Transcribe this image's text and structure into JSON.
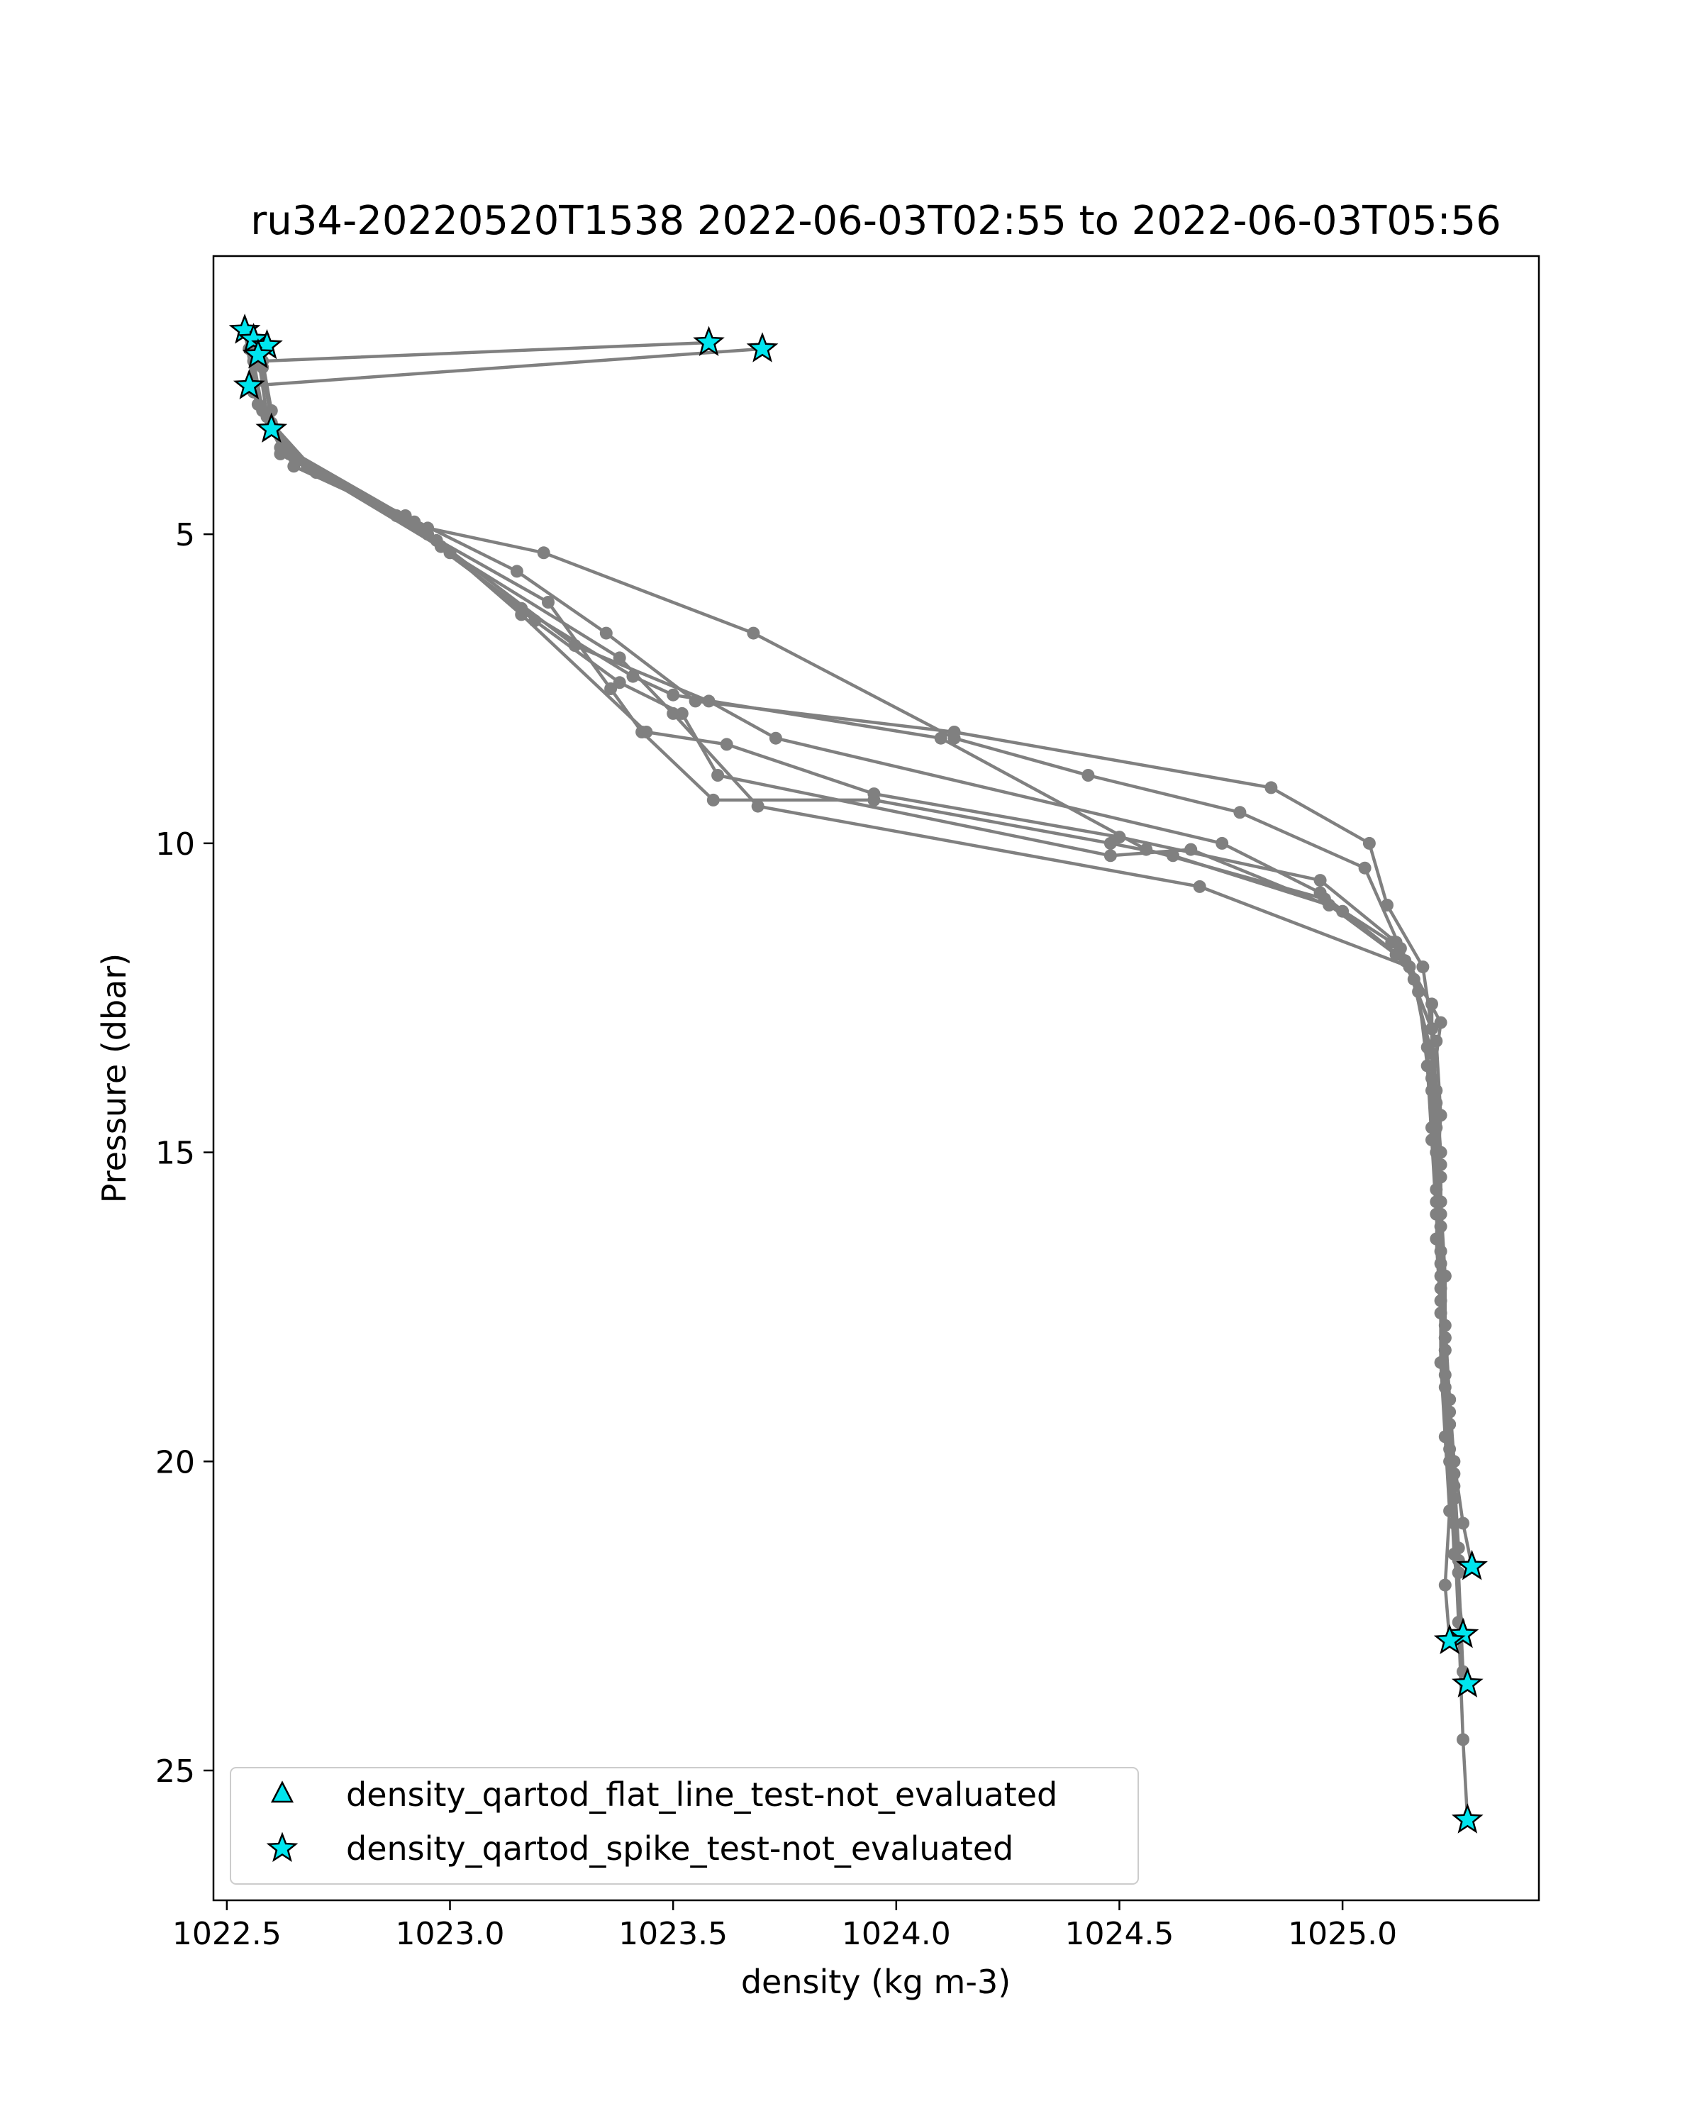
{
  "chart_data": {
    "type": "line",
    "title": "ru34-20220520T1538 2022-06-03T02:55 to 2022-06-03T05:56",
    "xlabel": "density (kg m-3)",
    "ylabel": "Pressure (dbar)",
    "xlim": [
      1022.47,
      1025.44
    ],
    "ylim": [
      27.1,
      0.5
    ],
    "y_inverted": true,
    "grid": false,
    "xticks": [
      1022.5,
      1023.0,
      1023.5,
      1024.0,
      1024.5,
      1025.0
    ],
    "xtick_labels": [
      "1022.5",
      "1023.0",
      "1023.5",
      "1024.0",
      "1024.5",
      "1025.0"
    ],
    "yticks": [
      5,
      10,
      15,
      20,
      25
    ],
    "ytick_labels": [
      "5",
      "10",
      "15",
      "20",
      "25"
    ],
    "line_color": "#808080",
    "marker_fill": "#00e5ee",
    "series": [
      {
        "points": [
          [
            1023.58,
            1.9
          ],
          [
            1022.58,
            2.2
          ],
          [
            1022.6,
            3.0
          ],
          [
            1022.62,
            3.7
          ],
          [
            1022.9,
            4.7
          ],
          [
            1023.15,
            5.6
          ],
          [
            1023.35,
            6.6
          ],
          [
            1023.55,
            7.7
          ],
          [
            1024.13,
            8.2
          ],
          [
            1024.84,
            9.1
          ],
          [
            1025.06,
            10.0
          ],
          [
            1025.1,
            11.0
          ],
          [
            1025.18,
            12.0
          ],
          [
            1025.2,
            13.0
          ],
          [
            1025.21,
            14.0
          ],
          [
            1025.22,
            15.0
          ],
          [
            1025.22,
            16.0
          ],
          [
            1025.23,
            17.0
          ],
          [
            1025.23,
            18.0
          ],
          [
            1025.24,
            19.0
          ],
          [
            1025.25,
            20.0
          ],
          [
            1025.27,
            21.0
          ],
          [
            1025.29,
            21.7
          ]
        ]
      },
      {
        "points": [
          [
            1023.7,
            2.0
          ],
          [
            1022.55,
            2.6
          ],
          [
            1022.6,
            3.3
          ],
          [
            1022.65,
            3.9
          ],
          [
            1022.95,
            4.9
          ],
          [
            1023.21,
            5.3
          ],
          [
            1023.68,
            6.6
          ],
          [
            1024.13,
            8.3
          ],
          [
            1024.43,
            8.9
          ],
          [
            1024.77,
            9.5
          ],
          [
            1025.05,
            10.4
          ],
          [
            1025.13,
            11.7
          ],
          [
            1025.22,
            12.9
          ],
          [
            1025.2,
            14.0
          ],
          [
            1025.22,
            15.2
          ],
          [
            1025.21,
            16.4
          ],
          [
            1025.22,
            17.6
          ],
          [
            1025.23,
            18.8
          ],
          [
            1025.24,
            20.0
          ],
          [
            1025.25,
            21.5
          ],
          [
            1025.27,
            22.8
          ]
        ]
      },
      {
        "points": [
          [
            1022.54,
            1.7
          ],
          [
            1022.56,
            2.6
          ],
          [
            1022.63,
            3.6
          ],
          [
            1022.92,
            4.8
          ],
          [
            1023.16,
            6.3
          ],
          [
            1023.44,
            8.2
          ],
          [
            1023.62,
            8.4
          ],
          [
            1023.95,
            9.2
          ],
          [
            1024.5,
            9.9
          ],
          [
            1024.95,
            10.6
          ],
          [
            1025.12,
            11.6
          ],
          [
            1025.17,
            12.4
          ],
          [
            1025.19,
            13.6
          ],
          [
            1025.2,
            14.8
          ],
          [
            1025.21,
            16.0
          ],
          [
            1025.22,
            17.2
          ],
          [
            1025.22,
            18.4
          ],
          [
            1025.23,
            19.6
          ],
          [
            1025.24,
            20.8
          ],
          [
            1025.23,
            22.0
          ],
          [
            1025.24,
            22.9
          ]
        ]
      },
      {
        "points": [
          [
            1022.56,
            1.9
          ],
          [
            1022.56,
            2.7
          ],
          [
            1022.62,
            3.6
          ],
          [
            1022.88,
            4.7
          ],
          [
            1023.16,
            6.2
          ],
          [
            1023.41,
            7.3
          ],
          [
            1023.5,
            7.6
          ],
          [
            1024.1,
            8.3
          ],
          [
            1024.56,
            10.1
          ],
          [
            1024.96,
            10.9
          ],
          [
            1025.11,
            11.6
          ],
          [
            1025.16,
            12.2
          ],
          [
            1025.19,
            13.3
          ],
          [
            1025.2,
            14.6
          ],
          [
            1025.21,
            15.8
          ],
          [
            1025.22,
            17.0
          ],
          [
            1025.23,
            18.2
          ],
          [
            1025.24,
            19.4
          ],
          [
            1025.25,
            20.6
          ],
          [
            1025.26,
            21.8
          ],
          [
            1025.27,
            23.4
          ],
          [
            1025.28,
            23.6
          ]
        ]
      },
      {
        "points": [
          [
            1022.55,
            2.0
          ],
          [
            1022.57,
            2.9
          ],
          [
            1022.64,
            3.7
          ],
          [
            1022.95,
            5.0
          ],
          [
            1023.22,
            6.1
          ],
          [
            1023.36,
            7.5
          ],
          [
            1023.43,
            8.2
          ],
          [
            1023.59,
            9.3
          ],
          [
            1023.95,
            9.3
          ],
          [
            1024.48,
            10.0
          ],
          [
            1024.62,
            10.2
          ],
          [
            1024.97,
            11.0
          ],
          [
            1025.12,
            11.8
          ],
          [
            1025.2,
            12.6
          ],
          [
            1025.2,
            13.8
          ],
          [
            1025.21,
            15.0
          ],
          [
            1025.22,
            16.2
          ],
          [
            1025.22,
            17.4
          ],
          [
            1025.23,
            18.6
          ],
          [
            1025.24,
            19.8
          ],
          [
            1025.25,
            21.0
          ],
          [
            1025.26,
            22.6
          ],
          [
            1025.27,
            24.5
          ],
          [
            1025.28,
            25.8
          ]
        ]
      },
      {
        "points": [
          [
            1022.56,
            2.2
          ],
          [
            1022.58,
            3.0
          ],
          [
            1022.66,
            3.8
          ],
          [
            1022.98,
            5.2
          ],
          [
            1023.19,
            6.4
          ],
          [
            1023.38,
            7.4
          ],
          [
            1023.52,
            7.9
          ],
          [
            1023.6,
            8.9
          ],
          [
            1024.48,
            10.2
          ],
          [
            1024.66,
            10.1
          ],
          [
            1025.0,
            11.1
          ],
          [
            1025.14,
            11.9
          ],
          [
            1025.21,
            13.2
          ],
          [
            1025.22,
            14.4
          ],
          [
            1025.21,
            15.6
          ],
          [
            1025.22,
            16.8
          ],
          [
            1025.23,
            18.0
          ],
          [
            1025.24,
            19.2
          ],
          [
            1025.25,
            20.4
          ],
          [
            1025.26,
            21.6
          ]
        ]
      },
      {
        "points": [
          [
            1022.57,
            2.1
          ],
          [
            1022.59,
            3.1
          ],
          [
            1022.68,
            3.9
          ],
          [
            1022.97,
            5.1
          ],
          [
            1023.28,
            6.8
          ],
          [
            1023.58,
            7.7
          ],
          [
            1023.73,
            8.3
          ],
          [
            1024.73,
            10.0
          ],
          [
            1024.95,
            10.8
          ],
          [
            1025.14,
            11.9
          ],
          [
            1025.2,
            13.0
          ],
          [
            1025.21,
            14.2
          ],
          [
            1025.22,
            15.4
          ],
          [
            1025.22,
            16.6
          ],
          [
            1025.23,
            17.8
          ],
          [
            1025.24,
            19.0
          ],
          [
            1025.25,
            20.2
          ],
          [
            1025.26,
            21.4
          ]
        ]
      },
      {
        "points": [
          [
            1022.58,
            2.3
          ],
          [
            1022.6,
            3.2
          ],
          [
            1022.7,
            4.0
          ],
          [
            1023.0,
            5.3
          ],
          [
            1023.38,
            7.0
          ],
          [
            1023.5,
            7.9
          ],
          [
            1023.69,
            9.4
          ],
          [
            1024.68,
            10.7
          ],
          [
            1025.15,
            12.0
          ],
          [
            1025.2,
            13.4
          ],
          [
            1025.21,
            14.6
          ],
          [
            1025.22,
            15.8
          ],
          [
            1025.23,
            17.0
          ],
          [
            1025.23,
            18.2
          ],
          [
            1025.24,
            19.4
          ],
          [
            1025.25,
            20.6
          ],
          [
            1025.26,
            21.8
          ]
        ]
      }
    ],
    "flagged_points": [
      {
        "x": 1023.58,
        "y": 1.9,
        "flag": "density_qartod_spike_test-not_evaluated"
      },
      {
        "x": 1023.7,
        "y": 2.0,
        "flag": "density_qartod_spike_test-not_evaluated"
      },
      {
        "x": 1022.54,
        "y": 1.7,
        "flag": "density_qartod_spike_test-not_evaluated"
      },
      {
        "x": 1022.56,
        "y": 1.85,
        "flag": "density_qartod_spike_test-not_evaluated"
      },
      {
        "x": 1022.59,
        "y": 1.95,
        "flag": "density_qartod_spike_test-not_evaluated"
      },
      {
        "x": 1022.57,
        "y": 2.1,
        "flag": "density_qartod_spike_test-not_evaluated"
      },
      {
        "x": 1022.55,
        "y": 2.6,
        "flag": "density_qartod_spike_test-not_evaluated"
      },
      {
        "x": 1022.6,
        "y": 3.3,
        "flag": "density_qartod_spike_test-not_evaluated"
      },
      {
        "x": 1025.29,
        "y": 21.7,
        "flag": "density_qartod_spike_test-not_evaluated"
      },
      {
        "x": 1025.27,
        "y": 22.8,
        "flag": "density_qartod_spike_test-not_evaluated"
      },
      {
        "x": 1025.24,
        "y": 22.9,
        "flag": "density_qartod_spike_test-not_evaluated"
      },
      {
        "x": 1025.28,
        "y": 23.6,
        "flag": "density_qartod_spike_test-not_evaluated"
      },
      {
        "x": 1025.28,
        "y": 25.8,
        "flag": "density_qartod_spike_test-not_evaluated"
      }
    ],
    "legend": {
      "position": "lower-left",
      "entries": [
        {
          "label": "density_qartod_flat_line_test-not_evaluated",
          "marker": "triangle"
        },
        {
          "label": "density_qartod_spike_test-not_evaluated",
          "marker": "star"
        }
      ]
    }
  }
}
